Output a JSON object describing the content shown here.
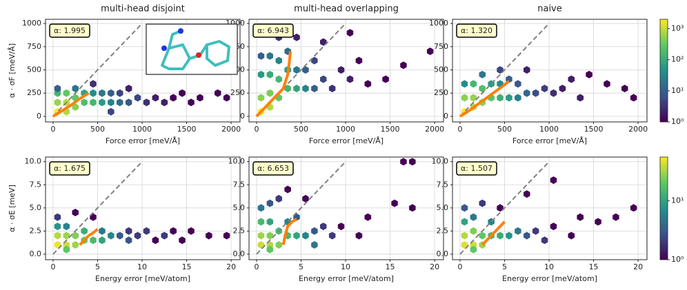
{
  "chart_data": [
    {
      "type": "hexbin",
      "title": "multi-head disjoint",
      "xlabel": "Force error [meV/Å]",
      "ylabel": "α · σF [meV/Å]",
      "annotation": "α: 1.995",
      "xlim": [
        -85,
        2100
      ],
      "ylim": [
        -60,
        1045
      ],
      "xticks": [
        0,
        500,
        1000,
        1500,
        2000
      ],
      "yticks": [
        0,
        250,
        500,
        750,
        1000
      ],
      "grid": true,
      "reference": {
        "x": [
          0,
          1000
        ],
        "y": [
          0,
          1000
        ]
      },
      "line": {
        "color": "#ff7f0e",
        "x": [
          0,
          100,
          200,
          300,
          400
        ],
        "y": [
          0,
          60,
          120,
          190,
          250
        ]
      },
      "hexbins": {
        "x": [
          50,
          150,
          50,
          150,
          250,
          250,
          350,
          350,
          450,
          450,
          550,
          550,
          650,
          650,
          750,
          750,
          850,
          850,
          950,
          1050,
          1150,
          1250,
          1350,
          1450,
          1550,
          1650,
          1850,
          1950,
          150,
          50,
          250,
          450,
          650,
          50
        ],
        "y": [
          50,
          50,
          150,
          150,
          100,
          200,
          150,
          250,
          150,
          250,
          150,
          250,
          150,
          250,
          150,
          250,
          150,
          300,
          200,
          150,
          200,
          150,
          200,
          250,
          150,
          200,
          250,
          200,
          250,
          250,
          300,
          350,
          50,
          300
        ],
        "counts": [
          2000,
          800,
          600,
          900,
          500,
          300,
          200,
          80,
          150,
          40,
          60,
          20,
          30,
          10,
          15,
          5,
          8,
          2,
          5,
          3,
          2,
          2,
          1,
          1,
          1,
          1,
          1,
          1,
          300,
          150,
          20,
          3,
          5,
          10
        ]
      }
    },
    {
      "type": "hexbin",
      "title": "multi-head overlapping",
      "xlabel": "Force error [meV/Å]",
      "annotation": "α: 6.943",
      "xlim": [
        -85,
        2100
      ],
      "ylim": [
        -60,
        1045
      ],
      "xticks": [
        0,
        500,
        1000,
        1500,
        2000
      ],
      "yticks": [
        0,
        250,
        500,
        750,
        1000
      ],
      "grid": true,
      "reference": {
        "x": [
          0,
          1000
        ],
        "y": [
          0,
          1000
        ]
      },
      "line": {
        "color": "#ff7f0e",
        "x": [
          0,
          100,
          200,
          300,
          350,
          370,
          380
        ],
        "y": [
          0,
          100,
          200,
          300,
          450,
          600,
          700
        ]
      },
      "hexbins": {
        "x": [
          50,
          150,
          50,
          150,
          250,
          250,
          350,
          350,
          150,
          50,
          250,
          350,
          150,
          450,
          450,
          550,
          550,
          650,
          650,
          750,
          850,
          950,
          1050,
          1250,
          1450,
          1650,
          1950,
          750,
          450,
          1050,
          250,
          50,
          1150
        ],
        "y": [
          50,
          100,
          200,
          250,
          200,
          400,
          300,
          500,
          450,
          450,
          600,
          700,
          650,
          300,
          500,
          300,
          500,
          300,
          600,
          400,
          300,
          500,
          400,
          350,
          400,
          550,
          700,
          800,
          850,
          900,
          850,
          650,
          600
        ],
        "counts": [
          2000,
          800,
          500,
          400,
          300,
          150,
          150,
          60,
          100,
          60,
          30,
          15,
          20,
          80,
          20,
          30,
          10,
          10,
          5,
          5,
          3,
          2,
          2,
          1,
          1,
          1,
          1,
          2,
          2,
          1,
          3,
          10,
          1
        ]
      }
    },
    {
      "type": "hexbin",
      "title": "naive",
      "xlabel": "Force error [meV/Å]",
      "annotation": "α: 1.320",
      "xlim": [
        -85,
        2100
      ],
      "ylim": [
        -60,
        1045
      ],
      "xticks": [
        0,
        500,
        1000,
        1500,
        2000
      ],
      "yticks": [
        0,
        250,
        500,
        750,
        1000
      ],
      "grid": true,
      "reference": {
        "x": [
          0,
          1000
        ],
        "y": [
          0,
          1000
        ]
      },
      "line": {
        "color": "#ff7f0e",
        "x": [
          0,
          100,
          200,
          300,
          400,
          500,
          550
        ],
        "y": [
          0,
          60,
          130,
          200,
          270,
          340,
          380
        ]
      },
      "hexbins": {
        "x": [
          50,
          150,
          50,
          150,
          250,
          250,
          350,
          350,
          450,
          450,
          550,
          550,
          650,
          650,
          750,
          850,
          950,
          1050,
          1150,
          1250,
          1450,
          1650,
          1850,
          1950,
          150,
          50,
          250,
          450,
          750,
          1350
        ],
        "y": [
          50,
          100,
          200,
          200,
          150,
          300,
          200,
          350,
          200,
          350,
          200,
          400,
          200,
          350,
          250,
          250,
          300,
          250,
          300,
          400,
          450,
          350,
          300,
          200,
          350,
          350,
          450,
          500,
          500,
          200
        ],
        "counts": [
          2000,
          900,
          500,
          600,
          500,
          200,
          250,
          60,
          120,
          40,
          60,
          10,
          25,
          8,
          12,
          6,
          4,
          3,
          2,
          2,
          1,
          1,
          1,
          1,
          150,
          40,
          20,
          5,
          2,
          2
        ]
      }
    },
    {
      "type": "hexbin",
      "xlabel": "Energy error [meV/atom]",
      "ylabel": "α · σE [meV]",
      "annotation": "α: 1.675",
      "xlim": [
        -0.85,
        21
      ],
      "ylim": [
        -0.6,
        10.5
      ],
      "xticks": [
        0,
        5,
        10,
        15,
        20
      ],
      "yticks": [
        {
          "value": 0,
          "label": "0.0"
        },
        {
          "value": 2.5,
          "label": "2.5"
        },
        {
          "value": 5,
          "label": "5.0"
        },
        {
          "value": 7.5,
          "label": "7.5"
        },
        {
          "value": 10,
          "label": "10.0"
        }
      ],
      "grid": true,
      "reference": {
        "x": [
          0,
          10
        ],
        "y": [
          0,
          10
        ]
      },
      "line": {
        "color": "#ff7f0e",
        "x": [
          3,
          3.5,
          4,
          4.5,
          5
        ],
        "y": [
          1,
          1.5,
          2,
          2.3,
          2.7
        ]
      },
      "hexbins": {
        "x": [
          0.5,
          1.5,
          2.5,
          0.5,
          1.5,
          2.5,
          3.5,
          4.5,
          5.5,
          6.5,
          3.5,
          0.5,
          1.5,
          5.5,
          7.5,
          8.5,
          9.5,
          10.5,
          11.5,
          12.5,
          13.5,
          14.5,
          15.5,
          17.5,
          19.5,
          0.5,
          2.5,
          4.5,
          8.5,
          1.5
        ],
        "y": [
          1,
          1,
          1,
          2,
          2,
          2,
          1.5,
          1.5,
          1.5,
          2,
          2.5,
          3,
          3,
          2.5,
          2,
          1.5,
          2,
          2.5,
          1.5,
          2,
          2.5,
          1.5,
          2.5,
          2,
          2,
          4,
          4.5,
          4,
          2.5,
          0.5
        ],
        "counts": [
          50,
          40,
          30,
          35,
          30,
          25,
          20,
          15,
          10,
          6,
          12,
          8,
          6,
          5,
          3,
          3,
          2,
          2,
          1,
          2,
          1,
          1,
          1,
          1,
          1,
          2,
          1,
          1,
          2,
          20
        ]
      }
    },
    {
      "type": "hexbin",
      "xlabel": "Energy error [meV/atom]",
      "annotation": "α: 6.653",
      "xlim": [
        -0.85,
        21
      ],
      "ylim": [
        -0.6,
        10.5
      ],
      "xticks": [
        0,
        5,
        10,
        15,
        20
      ],
      "yticks": [
        {
          "value": 0,
          "label": "0.0"
        },
        {
          "value": 2.5,
          "label": "2.5"
        },
        {
          "value": 5,
          "label": "5.0"
        },
        {
          "value": 7.5,
          "label": "7.5"
        },
        {
          "value": 10,
          "label": "10.0"
        }
      ],
      "grid": true,
      "reference": {
        "x": [
          0,
          10
        ],
        "y": [
          0,
          10
        ]
      },
      "line": {
        "color": "#ff7f0e",
        "x": [
          3,
          3.2,
          3.5,
          4,
          4.5
        ],
        "y": [
          1,
          2,
          3,
          3.5,
          3.8
        ]
      },
      "hexbins": {
        "x": [
          0.5,
          1.5,
          2.5,
          0.5,
          1.5,
          2.5,
          0.5,
          1.5,
          3.5,
          4.5,
          5.5,
          3.5,
          4.5,
          0.5,
          1.5,
          2.5,
          6.5,
          7.5,
          8.5,
          9.5,
          11.5,
          12.5,
          15.5,
          17.5,
          3.5,
          5.5,
          16.5,
          17.5,
          1.5,
          6.5
        ],
        "y": [
          1,
          1,
          1,
          2,
          2,
          2.5,
          3.5,
          3.5,
          2,
          2,
          2,
          3.5,
          4,
          5,
          5.5,
          6,
          2.5,
          3,
          2,
          3,
          2,
          4,
          5.5,
          5,
          7,
          6,
          10,
          10,
          0.5,
          1
        ],
        "counts": [
          40,
          35,
          25,
          30,
          25,
          15,
          15,
          10,
          15,
          10,
          6,
          6,
          3,
          5,
          3,
          2,
          3,
          2,
          2,
          1,
          1,
          1,
          1,
          1,
          1,
          1,
          1,
          1,
          20,
          5
        ]
      }
    },
    {
      "type": "hexbin",
      "xlabel": "Energy error [meV/atom]",
      "annotation": "α: 1.507",
      "xlim": [
        -0.85,
        21
      ],
      "ylim": [
        -0.6,
        10.5
      ],
      "xticks": [
        0,
        5,
        10,
        15,
        20
      ],
      "yticks": [
        {
          "value": 0,
          "label": "0.0"
        },
        {
          "value": 2.5,
          "label": "2.5"
        },
        {
          "value": 5,
          "label": "5.0"
        },
        {
          "value": 7.5,
          "label": "7.5"
        },
        {
          "value": 10,
          "label": "10.0"
        }
      ],
      "grid": true,
      "reference": {
        "x": [
          0,
          10
        ],
        "y": [
          0,
          10
        ]
      },
      "line": {
        "color": "#ff7f0e",
        "x": [
          2.5,
          3,
          3.5,
          4,
          4.5,
          5
        ],
        "y": [
          1,
          1.5,
          2,
          2.5,
          3,
          3.5
        ]
      },
      "hexbins": {
        "x": [
          0.5,
          1.5,
          2.5,
          0.5,
          1.5,
          2.5,
          3.5,
          4.5,
          5.5,
          0.5,
          1.5,
          3.5,
          6.5,
          7.5,
          8.5,
          9.5,
          10.5,
          12.5,
          13.5,
          15.5,
          17.5,
          19.5,
          0.5,
          2.5,
          4.5,
          7.5,
          10.5,
          1.5
        ],
        "y": [
          1,
          1,
          1,
          2,
          2.5,
          2,
          2,
          2,
          2,
          3.5,
          4,
          3.5,
          2.5,
          2,
          2.5,
          1.5,
          3,
          2,
          4,
          3.5,
          4,
          5,
          5,
          5.5,
          5,
          6.5,
          8,
          0.5
        ],
        "counts": [
          45,
          40,
          30,
          35,
          25,
          20,
          15,
          12,
          8,
          10,
          5,
          6,
          5,
          3,
          2,
          2,
          1,
          1,
          1,
          1,
          1,
          1,
          3,
          2,
          1,
          1,
          1,
          20
        ]
      }
    }
  ],
  "colorbars": [
    {
      "lim": [
        1,
        2000
      ],
      "ticks": [
        {
          "value": 1,
          "label": "10⁰"
        },
        {
          "value": 10,
          "label": "10¹"
        },
        {
          "value": 100,
          "label": "10²"
        },
        {
          "value": 1000,
          "label": "10³"
        }
      ]
    },
    {
      "lim": [
        1,
        55
      ],
      "ticks": [
        {
          "value": 1,
          "label": "10⁰"
        },
        {
          "value": 10,
          "label": "10¹"
        }
      ]
    }
  ]
}
